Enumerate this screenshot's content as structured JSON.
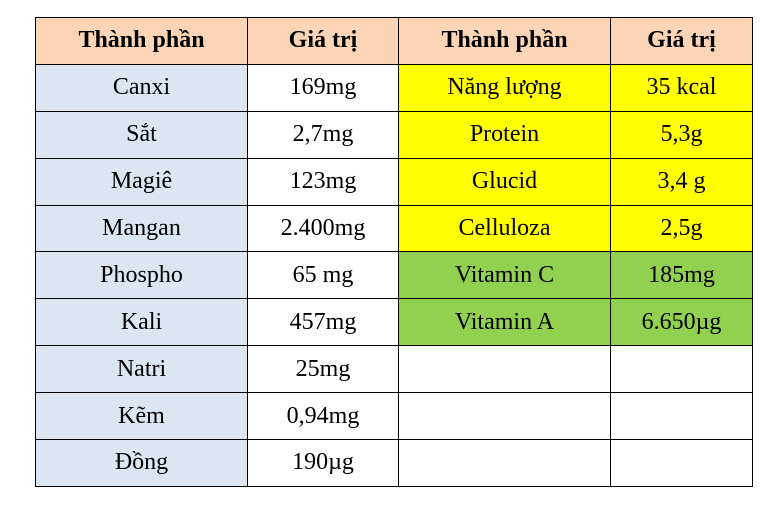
{
  "table": {
    "header": [
      "Thành phần",
      "Giá trị",
      "Thành phần",
      "Giá trị"
    ],
    "rows": [
      [
        "Canxi",
        "169mg",
        "Năng lượng",
        "35 kcal"
      ],
      [
        "Sắt",
        "2,7mg",
        "Protein",
        "5,3g"
      ],
      [
        "Magiê",
        "123mg",
        "Glucid",
        "3,4 g"
      ],
      [
        "Mangan",
        "2.400mg",
        "Celluloza",
        "2,5g"
      ],
      [
        "Phospho",
        "65 mg",
        "Vitamin C",
        "185mg"
      ],
      [
        "Kali",
        "457mg",
        "Vitamin A",
        "6.650µg"
      ],
      [
        "Natri",
        "25mg"
      ],
      [
        "Kẽm",
        "0,94mg"
      ],
      [
        "Đồng",
        "190µg"
      ]
    ]
  }
}
